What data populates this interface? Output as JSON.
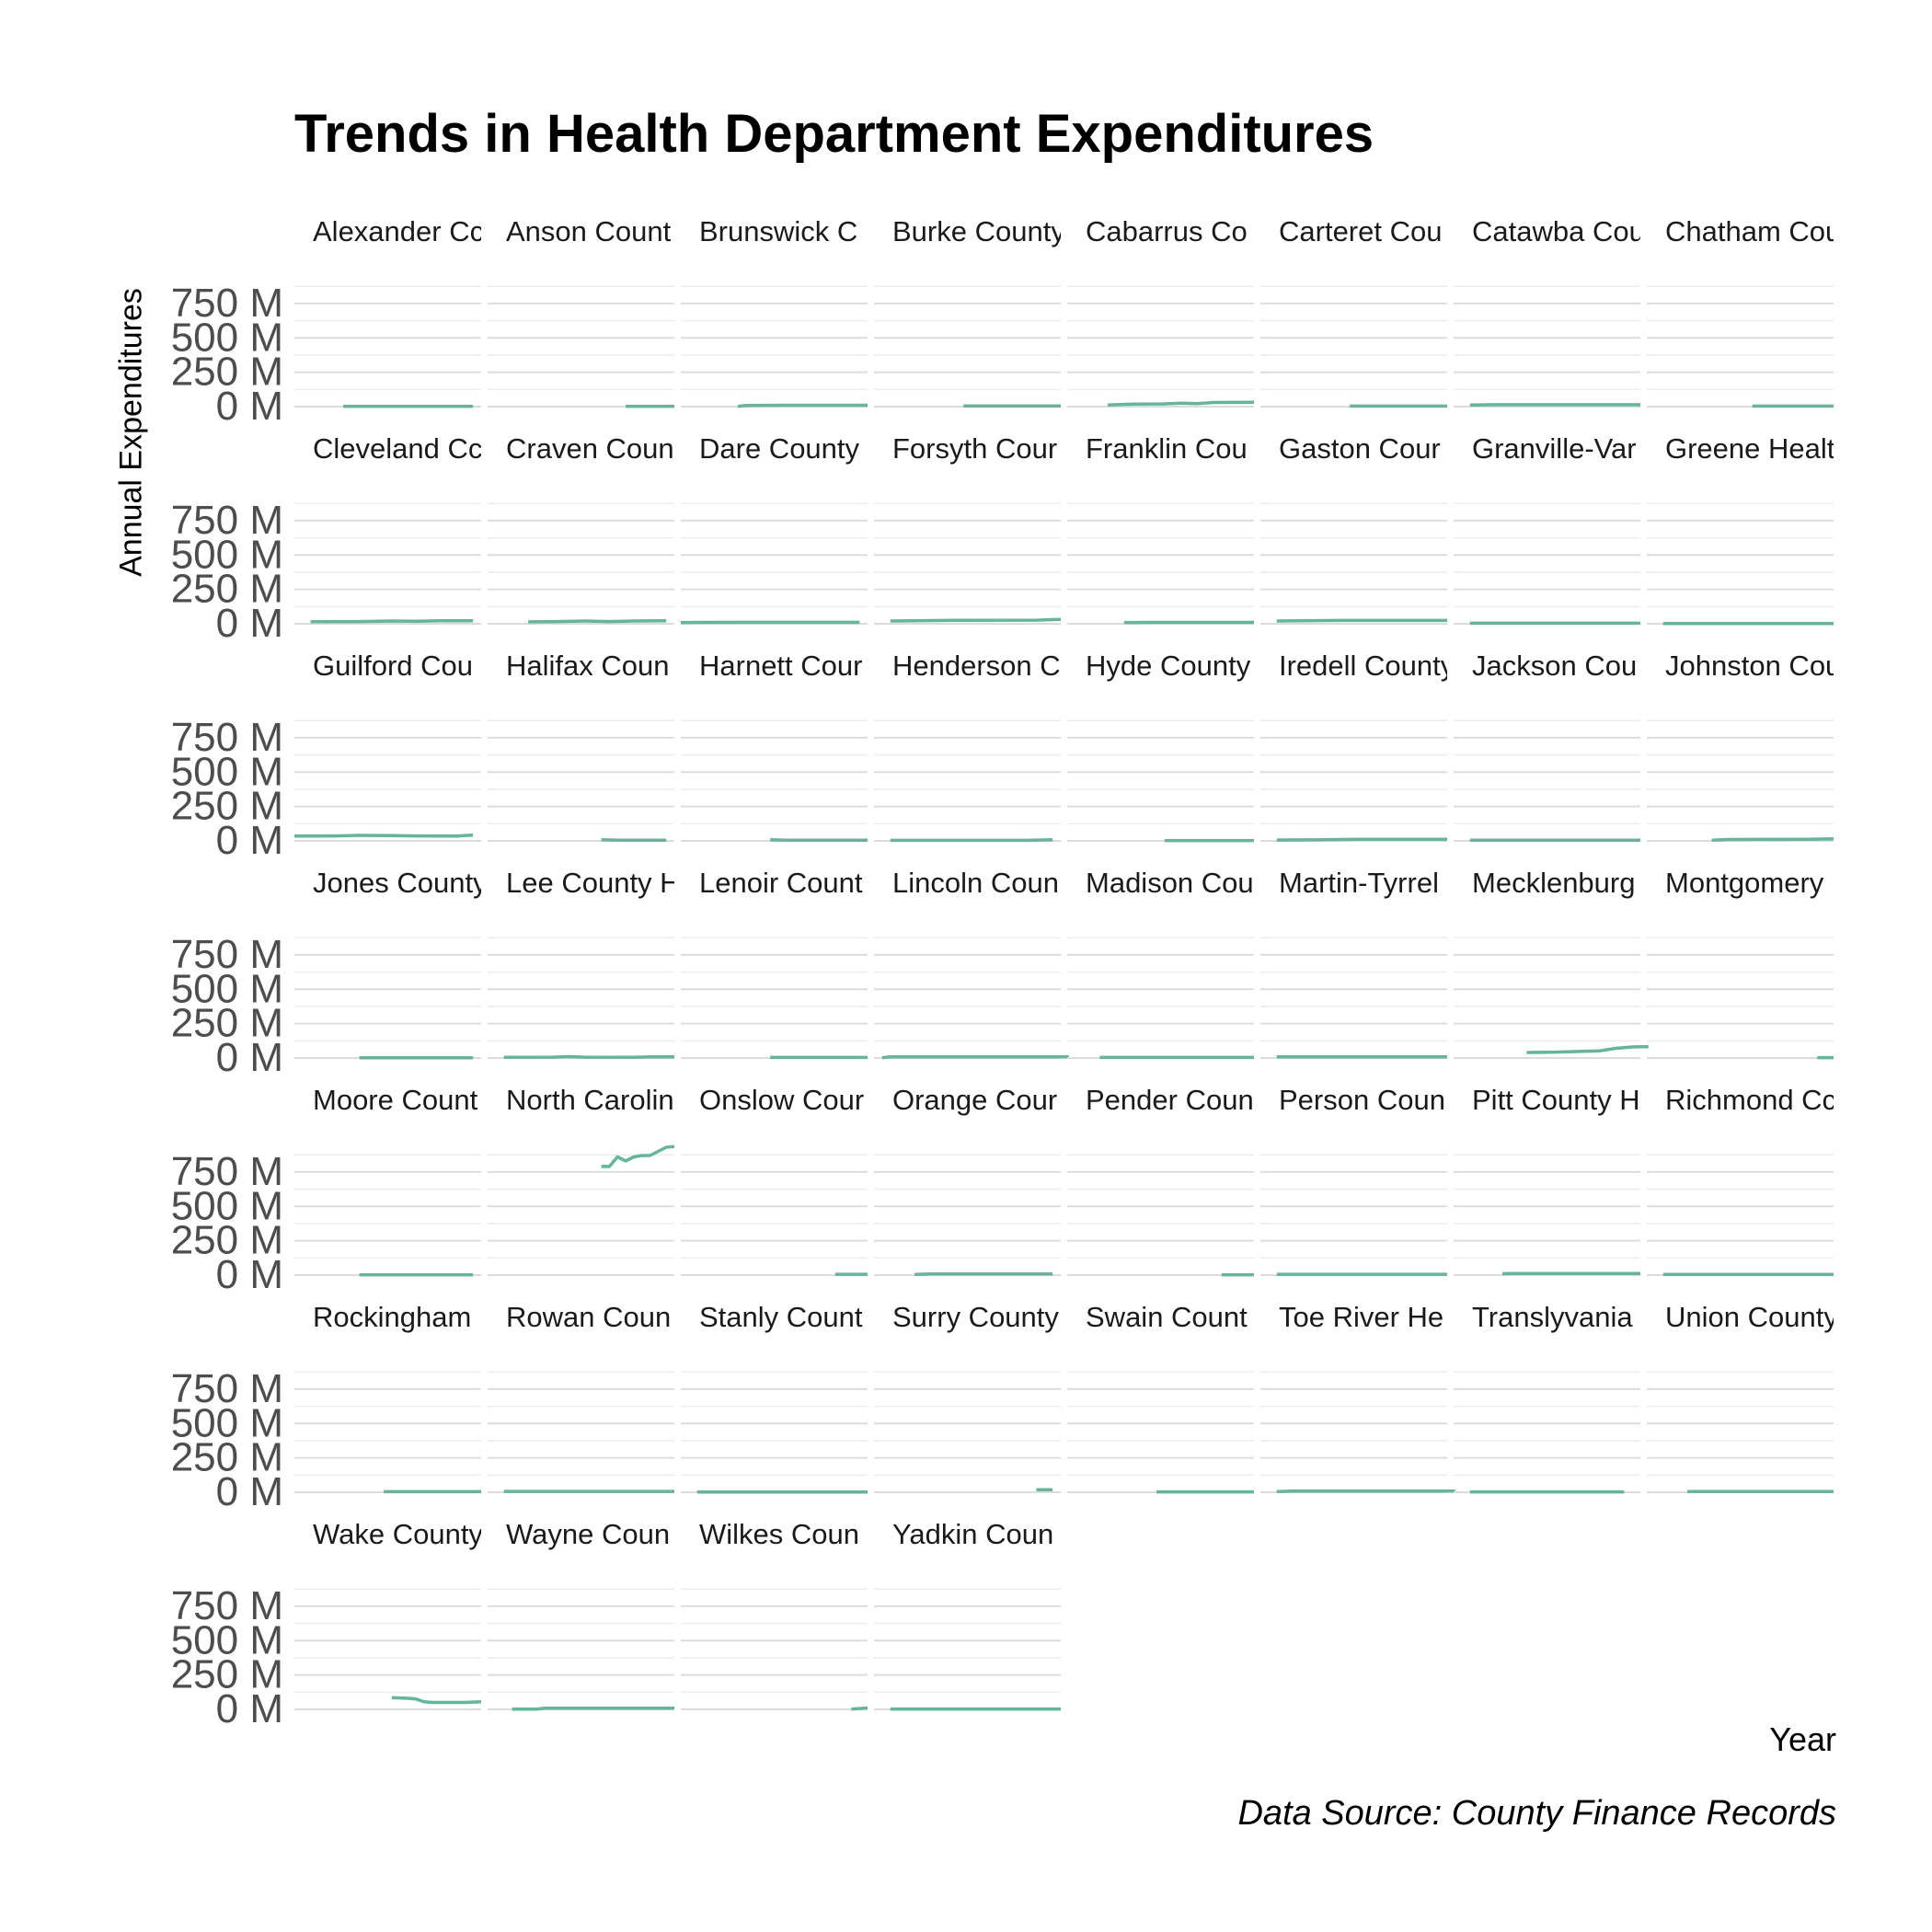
{
  "chart_data": {
    "type": "line",
    "title": "Trends in Health Department Expenditures",
    "xlabel": "Year",
    "ylabel": "Annual Expenditures",
    "caption": "Data Source: County Finance Records",
    "ylim": [
      0,
      950
    ],
    "y_unit": "M",
    "y_ticks": [
      0,
      250,
      500,
      750
    ],
    "y_tick_labels": [
      "0 M",
      "250 M",
      "500 M",
      "750 M"
    ],
    "xlim": [
      2000,
      2023
    ],
    "facet_columns": 8,
    "line_color": "#66b59a",
    "grid": true,
    "legend": "none",
    "panels": [
      {
        "label": "Alexander Cc",
        "x": [
          2006,
          2022
        ],
        "y": [
          3,
          3
        ]
      },
      {
        "label": "Anson Count",
        "x": [
          2017,
          2023
        ],
        "y": [
          3,
          3
        ]
      },
      {
        "label": "Brunswick C",
        "x": [
          2007,
          2008,
          2012,
          2023
        ],
        "y": [
          2,
          8,
          10,
          10
        ]
      },
      {
        "label": "Burke County",
        "x": [
          2011,
          2023
        ],
        "y": [
          5,
          5
        ]
      },
      {
        "label": "Cabarrus Co",
        "x": [
          2005,
          2008,
          2012,
          2014,
          2016,
          2018,
          2023
        ],
        "y": [
          12,
          18,
          20,
          25,
          22,
          30,
          32
        ]
      },
      {
        "label": "Carteret Cou",
        "x": [
          2011,
          2023
        ],
        "y": [
          4,
          4
        ]
      },
      {
        "label": "Catawba Cou",
        "x": [
          2002,
          2005,
          2023
        ],
        "y": [
          12,
          14,
          14
        ]
      },
      {
        "label": "Chatham Cou",
        "x": [
          2013,
          2023
        ],
        "y": [
          4,
          4
        ]
      },
      {
        "label": "Cleveland Cc",
        "x": [
          2002,
          2008,
          2012,
          2015,
          2018,
          2022
        ],
        "y": [
          15,
          16,
          20,
          18,
          22,
          22
        ]
      },
      {
        "label": "Craven Coun",
        "x": [
          2005,
          2008,
          2012,
          2015,
          2018,
          2022
        ],
        "y": [
          14,
          15,
          20,
          16,
          20,
          22
        ]
      },
      {
        "label": "Dare County",
        "x": [
          2000,
          2002,
          2008,
          2022
        ],
        "y": [
          8,
          10,
          11,
          11
        ]
      },
      {
        "label": "Forsyth Cour",
        "x": [
          2002,
          2005,
          2010,
          2020,
          2023
        ],
        "y": [
          20,
          22,
          25,
          26,
          32
        ]
      },
      {
        "label": "Franklin Cou",
        "x": [
          2007,
          2010,
          2023
        ],
        "y": [
          8,
          10,
          10
        ]
      },
      {
        "label": "Gaston Cour",
        "x": [
          2002,
          2005,
          2010,
          2023
        ],
        "y": [
          20,
          22,
          24,
          24
        ]
      },
      {
        "label": "Granville-Var",
        "x": [
          2002,
          2023
        ],
        "y": [
          4,
          4
        ]
      },
      {
        "label": "Greene Healt",
        "x": [
          2002,
          2023
        ],
        "y": [
          2,
          2
        ]
      },
      {
        "label": "Guilford Cou",
        "x": [
          2000,
          2005,
          2008,
          2012,
          2015,
          2020,
          2022
        ],
        "y": [
          35,
          36,
          40,
          38,
          36,
          35,
          42
        ]
      },
      {
        "label": "Halifax Coun",
        "x": [
          2014,
          2016,
          2022
        ],
        "y": [
          8,
          5,
          5
        ]
      },
      {
        "label": "Harnett Cour",
        "x": [
          2011,
          2013,
          2023
        ],
        "y": [
          8,
          5,
          5
        ]
      },
      {
        "label": "Henderson C",
        "x": [
          2002,
          2019,
          2022
        ],
        "y": [
          4,
          4,
          8
        ]
      },
      {
        "label": "Hyde County",
        "x": [
          2012,
          2023
        ],
        "y": [
          3,
          3
        ]
      },
      {
        "label": "Iredell County",
        "x": [
          2002,
          2008,
          2012,
          2023
        ],
        "y": [
          6,
          8,
          12,
          12
        ]
      },
      {
        "label": "Jackson Cou",
        "x": [
          2002,
          2023
        ],
        "y": [
          5,
          5
        ]
      },
      {
        "label": "Johnston Cou",
        "x": [
          2008,
          2010,
          2020,
          2023
        ],
        "y": [
          5,
          10,
          12,
          15
        ]
      },
      {
        "label": "Jones County",
        "x": [
          2008,
          2022
        ],
        "y": [
          2,
          2
        ]
      },
      {
        "label": "Lee County H",
        "x": [
          2002,
          2008,
          2010,
          2012,
          2018,
          2020,
          2023
        ],
        "y": [
          5,
          6,
          10,
          6,
          5,
          8,
          8
        ]
      },
      {
        "label": "Lenoir Count",
        "x": [
          2011,
          2023
        ],
        "y": [
          4,
          4
        ]
      },
      {
        "label": "Lincoln Coun",
        "x": [
          2001,
          2002,
          2024
        ],
        "y": [
          2,
          8,
          8
        ]
      },
      {
        "label": "Madison Cou",
        "x": [
          2004,
          2023
        ],
        "y": [
          4,
          4
        ]
      },
      {
        "label": "Martin-Tyrrel",
        "x": [
          2002,
          2023
        ],
        "y": [
          8,
          8
        ]
      },
      {
        "label": "Mecklenburg",
        "x": [
          2009,
          2012,
          2014,
          2016,
          2018,
          2020,
          2022,
          2024
        ],
        "y": [
          40,
          42,
          45,
          48,
          52,
          70,
          80,
          82
        ]
      },
      {
        "label": "Montgomery",
        "x": [
          2021,
          2023
        ],
        "y": [
          3,
          3
        ]
      },
      {
        "label": "Moore Count",
        "x": [
          2008,
          2022
        ],
        "y": [
          3,
          3
        ]
      },
      {
        "label": "North Carolin",
        "x": [
          2014,
          2015,
          2016,
          2017,
          2018,
          2019,
          2020,
          2021,
          2022,
          2023
        ],
        "y": [
          790,
          790,
          860,
          830,
          860,
          870,
          870,
          900,
          930,
          935
        ]
      },
      {
        "label": "Onslow Cour",
        "x": [
          2019,
          2023
        ],
        "y": [
          6,
          6
        ]
      },
      {
        "label": "Orange Cour",
        "x": [
          2005,
          2007,
          2022
        ],
        "y": [
          5,
          8,
          8
        ]
      },
      {
        "label": "Pender Coun",
        "x": [
          2019,
          2023
        ],
        "y": [
          3,
          3
        ]
      },
      {
        "label": "Person Coun",
        "x": [
          2002,
          2023
        ],
        "y": [
          6,
          6
        ]
      },
      {
        "label": "Pitt County H",
        "x": [
          2006,
          2007,
          2023
        ],
        "y": [
          10,
          12,
          12
        ]
      },
      {
        "label": "Richmond Cc",
        "x": [
          2002,
          2023
        ],
        "y": [
          5,
          5
        ]
      },
      {
        "label": "Rockingham",
        "x": [
          2011,
          2023
        ],
        "y": [
          4,
          4
        ]
      },
      {
        "label": "Rowan Coun",
        "x": [
          2002,
          2023
        ],
        "y": [
          6,
          6
        ]
      },
      {
        "label": "Stanly Count",
        "x": [
          2002,
          2023
        ],
        "y": [
          2,
          2
        ]
      },
      {
        "label": "Surry County",
        "x": [
          2020,
          2022
        ],
        "y": [
          18,
          18
        ]
      },
      {
        "label": "Swain Count",
        "x": [
          2011,
          2023
        ],
        "y": [
          3,
          3
        ]
      },
      {
        "label": "Toe River He",
        "x": [
          2002,
          2004,
          2024
        ],
        "y": [
          5,
          8,
          8
        ]
      },
      {
        "label": "Translyvania",
        "x": [
          2002,
          2021
        ],
        "y": [
          3,
          3
        ]
      },
      {
        "label": "Union County",
        "x": [
          2005,
          2023
        ],
        "y": [
          5,
          5
        ]
      },
      {
        "label": "Wake County",
        "x": [
          2012,
          2014,
          2015,
          2016,
          2017,
          2021,
          2023
        ],
        "y": [
          85,
          80,
          75,
          55,
          50,
          50,
          55
        ]
      },
      {
        "label": "Wayne Coun",
        "x": [
          2003,
          2006,
          2007,
          2023
        ],
        "y": [
          2,
          2,
          8,
          8
        ]
      },
      {
        "label": "Wilkes Coun",
        "x": [
          2021,
          2023
        ],
        "y": [
          2,
          10
        ]
      },
      {
        "label": "Yadkin Coun",
        "x": [
          2002,
          2023
        ],
        "y": [
          3,
          3
        ]
      }
    ]
  }
}
